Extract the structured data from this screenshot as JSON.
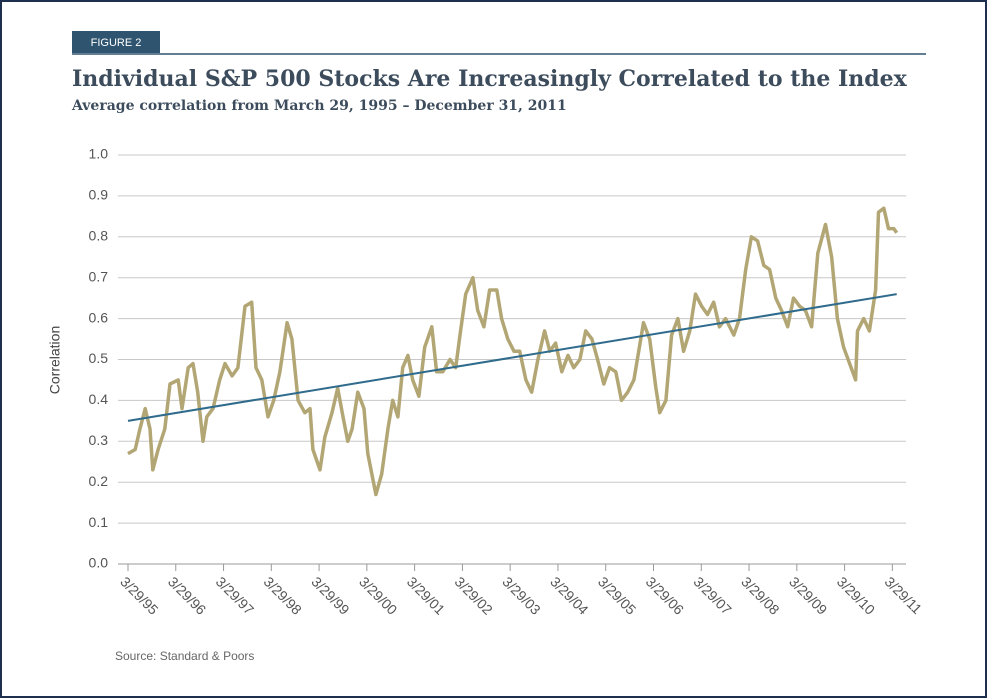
{
  "chart_data": {
    "type": "line",
    "label": "FIGURE 2",
    "title": "Individual S&P 500 Stocks Are Increasingly Correlated to the Index",
    "subtitle": "Average correlation from March 29, 1995 –  December 31, 2011",
    "ylabel": "Correlation",
    "source": "Source: Standard & Poors",
    "xlim": [
      1995.24,
      2011.4
    ],
    "ylim": [
      0,
      1
    ],
    "xticks": [
      {
        "value": 1995.24,
        "label": "3/29/95"
      },
      {
        "value": 1996.24,
        "label": "3/29/96"
      },
      {
        "value": 1997.24,
        "label": "3/29/97"
      },
      {
        "value": 1998.24,
        "label": "3/29/98"
      },
      {
        "value": 1999.24,
        "label": "3/29/99"
      },
      {
        "value": 2000.24,
        "label": "3/29/00"
      },
      {
        "value": 2001.24,
        "label": "3/29/01"
      },
      {
        "value": 2002.24,
        "label": "3/29/02"
      },
      {
        "value": 2003.24,
        "label": "3/29/03"
      },
      {
        "value": 2004.24,
        "label": "3/29/04"
      },
      {
        "value": 2005.24,
        "label": "3/29/05"
      },
      {
        "value": 2006.24,
        "label": "3/29/06"
      },
      {
        "value": 2007.24,
        "label": "3/29/07"
      },
      {
        "value": 2008.24,
        "label": "3/29/08"
      },
      {
        "value": 2009.24,
        "label": "3/29/09"
      },
      {
        "value": 2010.24,
        "label": "3/29/10"
      },
      {
        "value": 2011.24,
        "label": "3/29/11"
      }
    ],
    "yticks": [
      {
        "value": 0,
        "label": "0.0"
      },
      0.1,
      0.2,
      0.3,
      0.4,
      0.5,
      0.6,
      0.7,
      0.8,
      0.9,
      {
        "value": 1,
        "label": "1.0"
      }
    ],
    "grid": true,
    "series": [
      {
        "color": "#b3a675",
        "x": [
          1995.24,
          1995.39,
          1995.49,
          1995.6,
          1995.7,
          1995.76,
          1995.87,
          1996.01,
          1996.12,
          1996.29,
          1996.37,
          1996.5,
          1996.6,
          1996.7,
          1996.81,
          1996.89,
          1997.02,
          1997.16,
          1997.27,
          1997.42,
          1997.54,
          1997.69,
          1997.83,
          1997.92,
          1998.04,
          1998.17,
          1998.29,
          1998.42,
          1998.57,
          1998.67,
          1998.8,
          1998.94,
          1999.05,
          1999.11,
          1999.26,
          1999.36,
          1999.51,
          1999.63,
          1999.74,
          1999.84,
          1999.93,
          2000.05,
          2000.18,
          2000.26,
          2000.43,
          2000.55,
          2000.68,
          2000.78,
          2000.89,
          2000.99,
          2001.1,
          2001.2,
          2001.33,
          2001.45,
          2001.6,
          2001.7,
          2001.83,
          2001.98,
          2002.1,
          2002.19,
          2002.31,
          2002.46,
          2002.56,
          2002.69,
          2002.81,
          2002.96,
          2003.06,
          2003.19,
          2003.32,
          2003.44,
          2003.57,
          2003.69,
          2003.82,
          2003.96,
          2004.07,
          2004.19,
          2004.32,
          2004.45,
          2004.57,
          2004.7,
          2004.82,
          2004.95,
          2005.07,
          2005.2,
          2005.32,
          2005.45,
          2005.57,
          2005.7,
          2005.83,
          2006.03,
          2006.16,
          2006.29,
          2006.37,
          2006.5,
          2006.62,
          2006.75,
          2006.87,
          2007.0,
          2007.12,
          2007.25,
          2007.37,
          2007.5,
          2007.62,
          2007.75,
          2007.92,
          2008.04,
          2008.17,
          2008.29,
          2008.42,
          2008.55,
          2008.67,
          2008.8,
          2008.92,
          2009.05,
          2009.17,
          2009.3,
          2009.42,
          2009.55,
          2009.68,
          2009.84,
          2009.97,
          2010.09,
          2010.22,
          2010.47,
          2010.51,
          2010.64,
          2010.76,
          2010.89,
          2010.95,
          2011.06,
          2011.16,
          2011.27,
          2011.33
        ],
        "values": [
          0.27,
          0.28,
          0.33,
          0.38,
          0.33,
          0.23,
          0.28,
          0.33,
          0.44,
          0.45,
          0.38,
          0.48,
          0.49,
          0.42,
          0.3,
          0.36,
          0.38,
          0.45,
          0.49,
          0.46,
          0.48,
          0.63,
          0.64,
          0.48,
          0.45,
          0.36,
          0.4,
          0.47,
          0.59,
          0.55,
          0.4,
          0.37,
          0.38,
          0.28,
          0.23,
          0.31,
          0.37,
          0.43,
          0.36,
          0.3,
          0.33,
          0.42,
          0.38,
          0.27,
          0.17,
          0.22,
          0.33,
          0.4,
          0.36,
          0.48,
          0.51,
          0.45,
          0.41,
          0.53,
          0.58,
          0.47,
          0.47,
          0.5,
          0.48,
          0.56,
          0.66,
          0.7,
          0.62,
          0.58,
          0.67,
          0.67,
          0.6,
          0.55,
          0.52,
          0.52,
          0.45,
          0.42,
          0.5,
          0.57,
          0.52,
          0.54,
          0.47,
          0.51,
          0.48,
          0.5,
          0.57,
          0.55,
          0.5,
          0.44,
          0.48,
          0.47,
          0.4,
          0.42,
          0.45,
          0.59,
          0.55,
          0.43,
          0.37,
          0.4,
          0.56,
          0.6,
          0.52,
          0.57,
          0.66,
          0.63,
          0.61,
          0.64,
          0.58,
          0.6,
          0.56,
          0.6,
          0.72,
          0.8,
          0.79,
          0.73,
          0.72,
          0.65,
          0.62,
          0.58,
          0.65,
          0.63,
          0.62,
          0.58,
          0.76,
          0.83,
          0.75,
          0.6,
          0.53,
          0.45,
          0.57,
          0.6,
          0.57,
          0.67,
          0.86,
          0.87,
          0.82,
          0.82,
          0.81
        ]
      },
      {
        "color": "#2f6b8c",
        "x": [
          1995.24,
          2011.33
        ],
        "values": [
          0.35,
          0.66
        ]
      }
    ]
  }
}
